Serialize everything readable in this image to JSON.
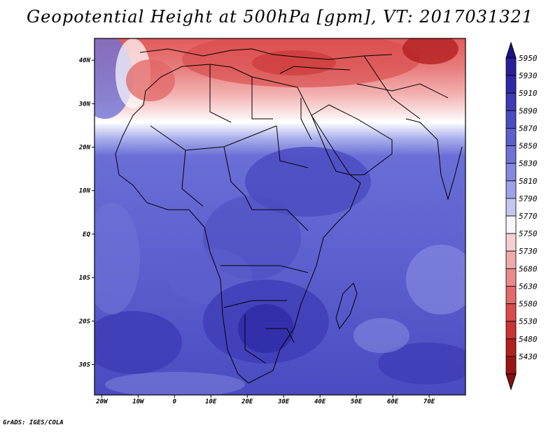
{
  "title": "Geopotential Height at 500hPa [gpm], VT: 2017031321",
  "credit": "GrADS: IGES/COLA",
  "map": {
    "lon_labels": [
      "20W",
      "10W",
      "0",
      "10E",
      "20E",
      "30E",
      "40E",
      "50E",
      "60E",
      "70E"
    ],
    "lat_labels": [
      "40N",
      "30N",
      "20N",
      "10N",
      "EQ",
      "10S",
      "20S",
      "30S"
    ],
    "lon_range": [
      -22,
      80
    ],
    "lat_range": [
      -37,
      45
    ]
  },
  "colorbar": {
    "levels": [
      "5950",
      "5930",
      "5910",
      "5890",
      "5870",
      "5850",
      "5830",
      "5810",
      "5790",
      "5770",
      "5750",
      "5730",
      "5680",
      "5630",
      "5580",
      "5530",
      "5480",
      "5430"
    ],
    "colors": [
      "#2a1f9a",
      "#2e2aa6",
      "#3d3bb5",
      "#4c4cc2",
      "#5d5fcd",
      "#6f73d6",
      "#8488de",
      "#9ea2e6",
      "#c3c6f0",
      "#f7f7ff",
      "#f6d0d0",
      "#f1aaaa",
      "#eb8a8a",
      "#e36a6a",
      "#d94c4c",
      "#ca3333",
      "#b32020",
      "#9a1515"
    ],
    "top_arrow_color": "#1a1288",
    "bottom_arrow_color": "#8a1010"
  }
}
